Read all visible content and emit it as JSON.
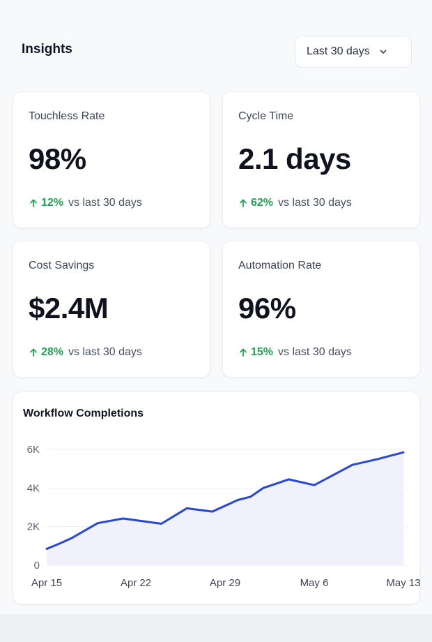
{
  "header": {
    "title": "Insights",
    "range_label": "Last 30 days"
  },
  "metrics": [
    {
      "label": "Touchless Rate",
      "value": "98%",
      "change": "12%",
      "change_suffix": "vs last 30 days"
    },
    {
      "label": "Cycle Time",
      "value": "2.1 days",
      "change": "62%",
      "change_suffix": "vs last 30 days"
    },
    {
      "label": "Cost Savings",
      "value": "$2.4M",
      "change": "28%",
      "change_suffix": "vs last 30 days"
    },
    {
      "label": "Automation Rate",
      "value": "96%",
      "change": "15%",
      "change_suffix": "vs last 30 days"
    }
  ],
  "colors": {
    "positive": "#22a352",
    "line": "#2747d6",
    "area": "#eef0fb",
    "grid": "#eceef2"
  },
  "chart_data": {
    "type": "area",
    "title": "Workflow Completions",
    "xlabel": "",
    "ylabel": "",
    "x_tick_labels": [
      "Apr 15",
      "Apr 22",
      "Apr 29",
      "May 6",
      "May 13"
    ],
    "y_tick_labels": [
      "0",
      "2K",
      "4K",
      "6K"
    ],
    "ylim": [
      0,
      6000
    ],
    "grid": true,
    "legend": "none",
    "x": [
      "Apr 15",
      "Apr 16",
      "Apr 17",
      "Apr 19",
      "Apr 21",
      "Apr 24",
      "Apr 26",
      "Apr 28",
      "Apr 30",
      "May 1",
      "May 2",
      "May 4",
      "May 6",
      "May 9",
      "May 11",
      "May 13"
    ],
    "values": [
      850,
      1120,
      1420,
      2180,
      2420,
      2150,
      2950,
      2780,
      3380,
      3550,
      4000,
      4450,
      4150,
      5200,
      5500,
      5850
    ]
  }
}
